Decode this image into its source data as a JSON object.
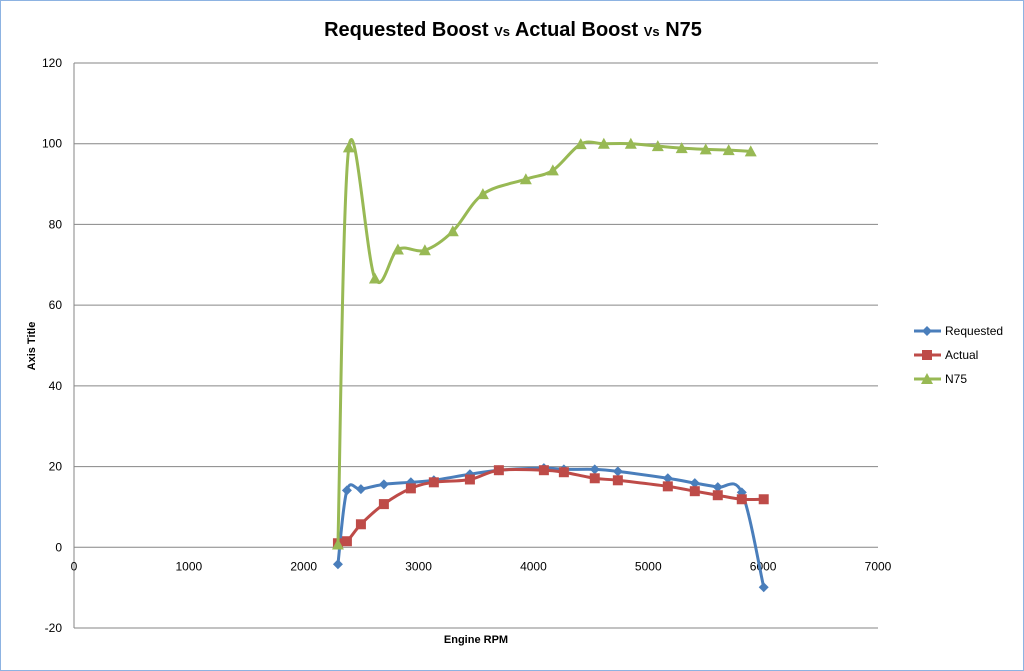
{
  "chart_data": {
    "type": "line",
    "title_parts": [
      "Requested Boost",
      "Vs",
      "Actual Boost",
      "Vs",
      "N75"
    ],
    "xlabel": "Engine RPM",
    "ylabel": "Axis Title",
    "xlim": [
      0,
      7000
    ],
    "ylim": [
      -20,
      120
    ],
    "xticks": [
      0,
      1000,
      2000,
      3000,
      4000,
      5000,
      6000,
      7000
    ],
    "yticks": [
      -20,
      0,
      20,
      40,
      60,
      80,
      100,
      120
    ],
    "grid": "horizontal",
    "legend": "right",
    "smooth": true,
    "series": [
      {
        "name": "Requested",
        "color": "#4a7ebb",
        "marker": "diamond",
        "x": [
          2298,
          2376,
          2498,
          2698,
          2933,
          3133,
          3447,
          3699,
          4091,
          4265,
          4534,
          4735,
          5170,
          5405,
          5605,
          5814,
          6005
        ],
        "y": [
          -4.2,
          14.1,
          14.4,
          15.6,
          16.1,
          16.6,
          18.1,
          19.1,
          19.6,
          19.3,
          19.3,
          18.8,
          17.1,
          15.9,
          14.9,
          13.6,
          -9.9
        ]
      },
      {
        "name": "Actual",
        "color": "#be4b48",
        "marker": "square",
        "x": [
          2298,
          2376,
          2498,
          2698,
          2933,
          3133,
          3447,
          3699,
          4091,
          4265,
          4534,
          4735,
          5170,
          5405,
          5605,
          5814,
          6005
        ],
        "y": [
          1.0,
          1.5,
          5.7,
          10.7,
          14.6,
          16.1,
          16.8,
          19.1,
          19.1,
          18.6,
          17.1,
          16.6,
          15.1,
          13.9,
          12.9,
          11.9,
          11.9
        ]
      },
      {
        "name": "N75",
        "color": "#98b954",
        "marker": "triangle",
        "x": [
          2298,
          2393,
          2620,
          2820,
          3055,
          3298,
          3560,
          3934,
          4169,
          4412,
          4613,
          4848,
          5083,
          5291,
          5500,
          5700,
          5892
        ],
        "y": [
          0.7,
          99.1,
          66.6,
          73.8,
          73.6,
          78.3,
          87.5,
          91.2,
          93.4,
          99.9,
          100,
          100,
          99.4,
          98.9,
          98.6,
          98.4,
          98.1
        ]
      }
    ]
  }
}
